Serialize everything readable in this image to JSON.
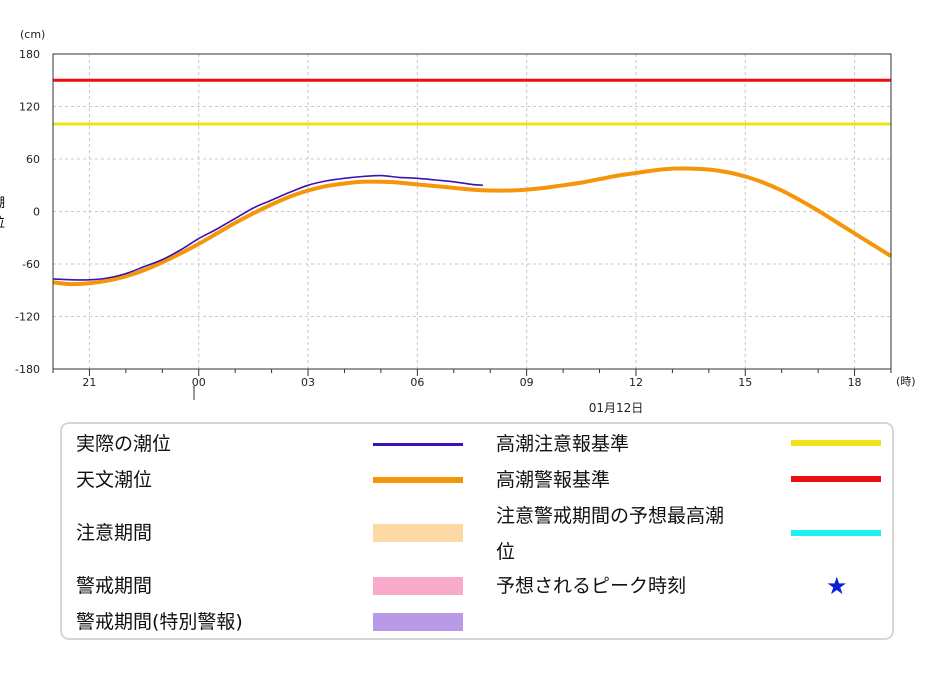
{
  "chart_data": {
    "type": "line",
    "y_unit": "(cm)",
    "x_unit": "(時)",
    "ylabel": "潮位",
    "ylim": [
      -180,
      180
    ],
    "y_ticks": [
      180,
      120,
      60,
      0,
      -60,
      -120,
      -180
    ],
    "y_tick_labels": [
      "180",
      "120",
      "60",
      "0",
      "-60",
      "-120",
      "-180"
    ],
    "xlim": [
      20.0,
      43.0
    ],
    "x_ticks": [
      21,
      24,
      27,
      30,
      33,
      36,
      39,
      42
    ],
    "x_tick_labels": [
      "21",
      "00",
      "03",
      "06",
      "09",
      "12",
      "15",
      "18"
    ],
    "date_label": "01月12日",
    "grid": true,
    "thresholds": [
      {
        "name": "高潮警報基準",
        "value": 150,
        "color": "#e81010"
      },
      {
        "name": "高潮注意報基準",
        "value": 100,
        "color": "#f2e21a"
      }
    ],
    "series": [
      {
        "name": "天文潮位",
        "color": "#f5960a",
        "x": [
          20.0,
          20.5,
          21.0,
          21.5,
          22.0,
          22.5,
          23.0,
          23.5,
          24.0,
          24.5,
          25.0,
          25.5,
          26.0,
          26.5,
          27.0,
          27.5,
          28.0,
          28.5,
          29.0,
          29.5,
          30.0,
          30.5,
          31.0,
          31.5,
          32.0,
          32.5,
          33.0,
          33.5,
          34.0,
          34.5,
          35.0,
          35.5,
          36.0,
          36.5,
          37.0,
          37.5,
          38.0,
          38.5,
          39.0,
          39.5,
          40.0,
          40.5,
          41.0,
          41.5,
          42.0,
          42.5,
          43.0
        ],
        "values": [
          -81,
          -83,
          -82,
          -79,
          -74,
          -67,
          -58,
          -48,
          -37,
          -25,
          -13,
          -2,
          8,
          17,
          24,
          29,
          32,
          34,
          34,
          33,
          31,
          29,
          27,
          25,
          24,
          24,
          25,
          27,
          30,
          33,
          37,
          41,
          44,
          47,
          49,
          49,
          48,
          45,
          40,
          33,
          24,
          13,
          1,
          -12,
          -25,
          -38,
          -51
        ]
      },
      {
        "name": "実際の潮位",
        "color": "#3a12b5",
        "x": [
          20.0,
          20.5,
          21.0,
          21.5,
          22.0,
          22.5,
          23.0,
          23.5,
          24.0,
          24.5,
          25.0,
          25.5,
          26.0,
          26.5,
          27.0,
          27.5,
          28.0,
          28.5,
          29.0,
          29.5,
          30.0,
          30.5,
          31.0,
          31.5,
          31.8
        ],
        "values": [
          -77,
          -78,
          -78,
          -76,
          -71,
          -63,
          -55,
          -44,
          -31,
          -20,
          -8,
          4,
          13,
          22,
          30,
          35,
          38,
          40,
          41,
          39,
          38,
          36,
          34,
          31,
          30
        ]
      }
    ]
  },
  "legend": {
    "actual": "実際の潮位",
    "astro": "天文潮位",
    "caution_period": "注意期間",
    "warning_period": "警戒期間",
    "special_period": "警戒期間(特別警報)",
    "caution_std": "高潮注意報基準",
    "warning_std": "高潮警報基準",
    "forecast_max_line1": "注意警戒期間の予想最高潮",
    "forecast_max_line2": "位",
    "peak_time": "予想されるピーク時刻",
    "star": "★",
    "colors": {
      "actual": "#3a12b5",
      "astro": "#f5960a",
      "caution_period": "#fdd9a6",
      "warning_period": "#f9a9c9",
      "special_period": "#b89ae6",
      "caution_std": "#f2e21a",
      "warning_std": "#e81010",
      "forecast_max": "#1ef0f0"
    }
  }
}
